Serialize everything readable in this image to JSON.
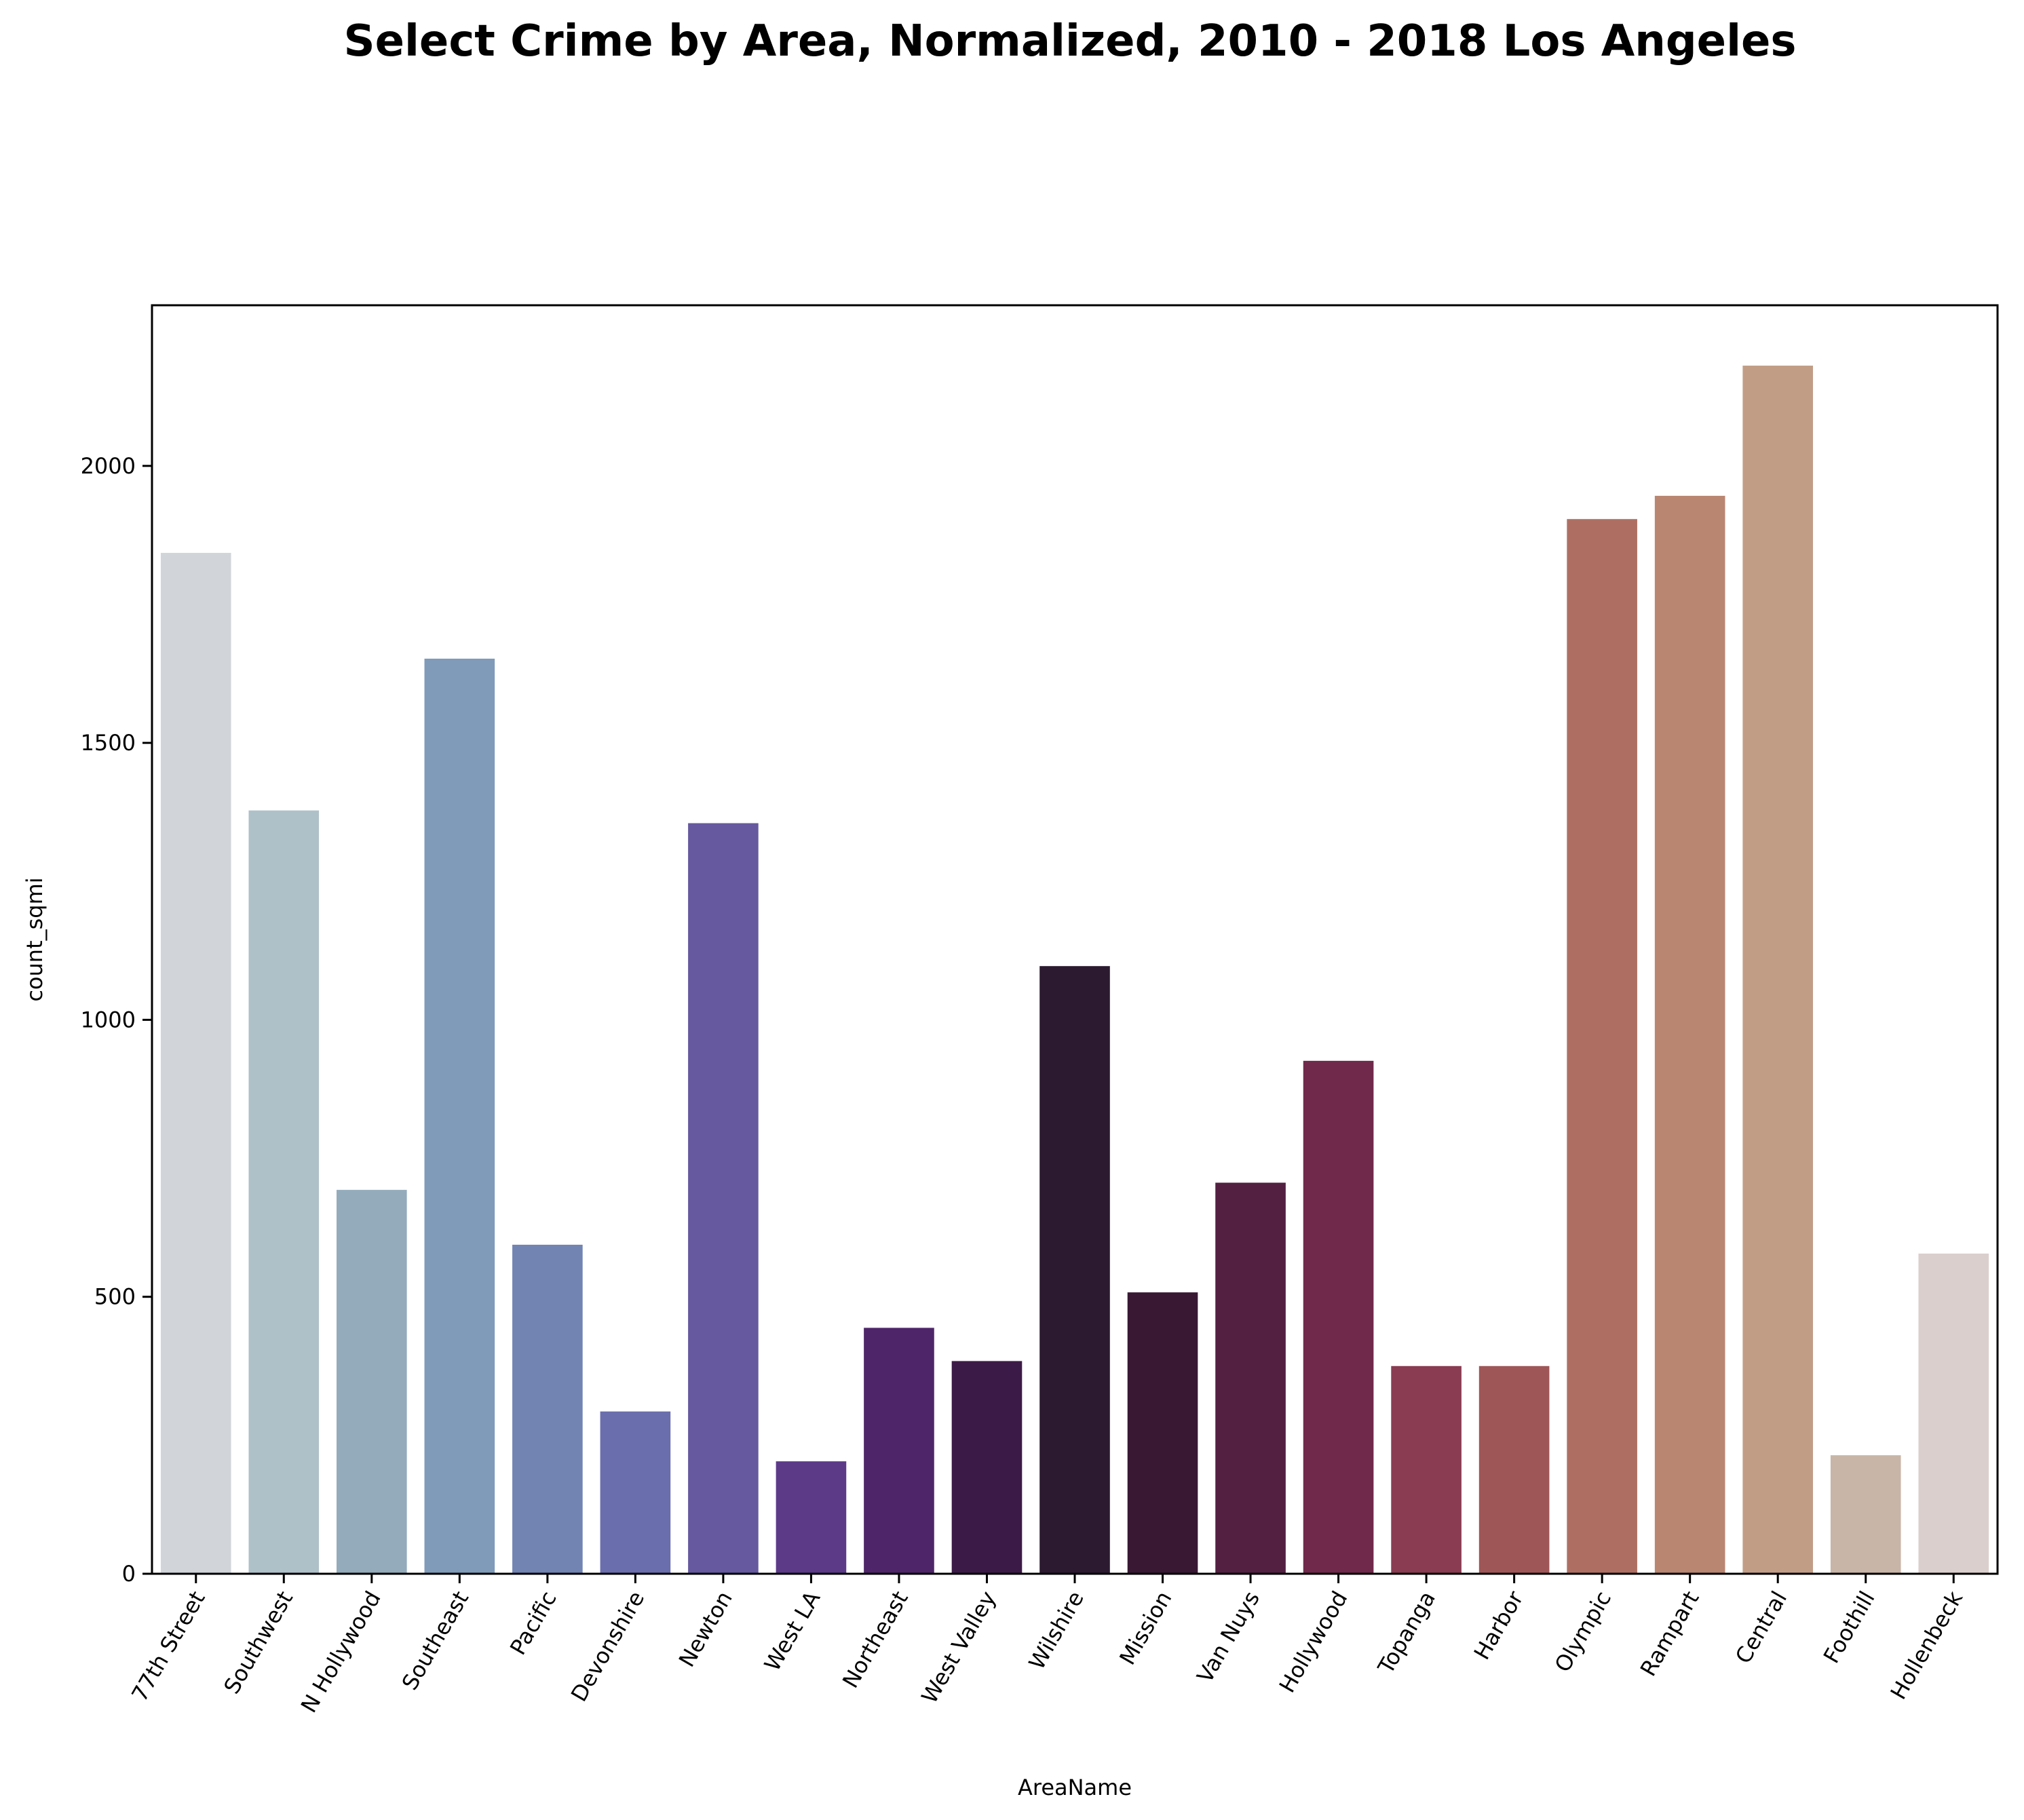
{
  "chart_data": {
    "type": "bar",
    "title": "Select Crime by Area, Normalized, 2010 - 2018 Los Angeles",
    "xlabel": "AreaName",
    "ylabel": "count_sqmi",
    "ylim": [
      0,
      2290
    ],
    "yticks": [
      0,
      500,
      1000,
      1500,
      2000
    ],
    "grid": false,
    "categories": [
      "77th Street",
      "Southwest",
      "N Hollywood",
      "Southeast",
      "Pacific",
      "Devonshire",
      "Newton",
      "West LA",
      "Northeast",
      "West Valley",
      "Wilshire",
      "Mission",
      "Van Nuys",
      "Hollywood",
      "Topanga",
      "Harbor",
      "Olympic",
      "Rampart",
      "Central",
      "Foothill",
      "Hollenbeck"
    ],
    "values": [
      1843,
      1378,
      693,
      1652,
      594,
      293,
      1355,
      203,
      444,
      384,
      1097,
      508,
      706,
      926,
      375,
      375,
      1904,
      1946,
      2181,
      214,
      578
    ],
    "colors": [
      "#d1d5da",
      "#afc1c8",
      "#94abbb",
      "#7f9bb9",
      "#7284b2",
      "#6a6ead",
      "#66599f",
      "#5c3a88",
      "#4e2569",
      "#3c1a47",
      "#2c1a31",
      "#391834",
      "#532042",
      "#70294b",
      "#893c52",
      "#9f5657",
      "#ae6f62",
      "#b98671",
      "#c29d86",
      "#c8b5a7",
      "#dbcfcd"
    ]
  }
}
